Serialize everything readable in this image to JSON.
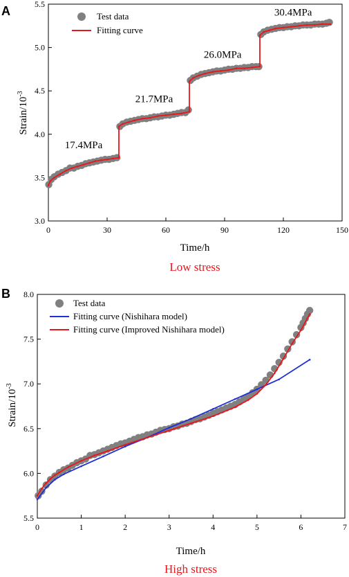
{
  "colors": {
    "test_data": "#808080",
    "fit_red": "#e8161b",
    "fit_blue": "#1f2fd6",
    "caption": "#e8161b"
  },
  "chart_data": [
    {
      "panel": "A",
      "type": "scatter",
      "caption": "Low stress",
      "xlabel": "Time/h",
      "ylabel_base": "Strain/10",
      "ylabel_exp": "-3",
      "xlim": [
        0,
        150
      ],
      "ylim": [
        3.0,
        5.5
      ],
      "xticks": [
        0,
        30,
        60,
        90,
        120,
        150
      ],
      "yticks": [
        3.0,
        3.5,
        4.0,
        4.5,
        5.0,
        5.5
      ],
      "grid": false,
      "legend": {
        "placement": "top-left",
        "entries": [
          "Test data",
          "Fitting curve"
        ]
      },
      "annotations": [
        {
          "text": "17.4MPa",
          "x": 18,
          "y": 3.84
        },
        {
          "text": "21.7MPa",
          "x": 54,
          "y": 4.37
        },
        {
          "text": "26.0MPa",
          "x": 89,
          "y": 4.88
        },
        {
          "text": "30.4MPa",
          "x": 125,
          "y": 5.37
        }
      ],
      "stages": [
        {
          "stress": "17.4MPa",
          "t0": 0,
          "t1": 36,
          "start": 3.4,
          "end": 3.74
        },
        {
          "stress": "21.7MPa",
          "t0": 36,
          "t1": 72,
          "start": 4.08,
          "end": 4.27
        },
        {
          "stress": "26.0MPa",
          "t0": 72,
          "t1": 108,
          "start": 4.61,
          "end": 4.78
        },
        {
          "stress": "30.4MPa",
          "t0": 108,
          "t1": 144,
          "start": 5.14,
          "end": 5.27
        }
      ],
      "series": [
        {
          "name": "Test data",
          "style": "marker",
          "points": [
            [
              0.2,
              3.42
            ],
            [
              1.5,
              3.48
            ],
            [
              3,
              3.51
            ],
            [
              5,
              3.54
            ],
            [
              7,
              3.56
            ],
            [
              9,
              3.58
            ],
            [
              11,
              3.61
            ],
            [
              13,
              3.61
            ],
            [
              15,
              3.63
            ],
            [
              17,
              3.64
            ],
            [
              19,
              3.66
            ],
            [
              21,
              3.67
            ],
            [
              23,
              3.68
            ],
            [
              25,
              3.69
            ],
            [
              27,
              3.7
            ],
            [
              29,
              3.71
            ],
            [
              31,
              3.71
            ],
            [
              33,
              3.72
            ],
            [
              35,
              3.73
            ],
            [
              36.5,
              4.09
            ],
            [
              38,
              4.12
            ],
            [
              40,
              4.14
            ],
            [
              42,
              4.15
            ],
            [
              44,
              4.16
            ],
            [
              46,
              4.17
            ],
            [
              48,
              4.18
            ],
            [
              50,
              4.18
            ],
            [
              52,
              4.19
            ],
            [
              54,
              4.2
            ],
            [
              56,
              4.2
            ],
            [
              58,
              4.21
            ],
            [
              60,
              4.22
            ],
            [
              62,
              4.22
            ],
            [
              64,
              4.23
            ],
            [
              66,
              4.24
            ],
            [
              68,
              4.25
            ],
            [
              70,
              4.25
            ],
            [
              71.5,
              4.28
            ],
            [
              72.5,
              4.62
            ],
            [
              74,
              4.65
            ],
            [
              76,
              4.67
            ],
            [
              78,
              4.69
            ],
            [
              80,
              4.7
            ],
            [
              82,
              4.71
            ],
            [
              84,
              4.72
            ],
            [
              86,
              4.73
            ],
            [
              88,
              4.73
            ],
            [
              90,
              4.74
            ],
            [
              92,
              4.75
            ],
            [
              94,
              4.75
            ],
            [
              96,
              4.76
            ],
            [
              98,
              4.76
            ],
            [
              100,
              4.77
            ],
            [
              102,
              4.77
            ],
            [
              104,
              4.78
            ],
            [
              106,
              4.78
            ],
            [
              107.5,
              4.78
            ],
            [
              108.5,
              5.15
            ],
            [
              110,
              5.18
            ],
            [
              112,
              5.2
            ],
            [
              114,
              5.21
            ],
            [
              116,
              5.22
            ],
            [
              118,
              5.23
            ],
            [
              120,
              5.23
            ],
            [
              122,
              5.24
            ],
            [
              124,
              5.24
            ],
            [
              126,
              5.25
            ],
            [
              128,
              5.25
            ],
            [
              130,
              5.26
            ],
            [
              132,
              5.26
            ],
            [
              134,
              5.26
            ],
            [
              136,
              5.27
            ],
            [
              138,
              5.27
            ],
            [
              140,
              5.27
            ],
            [
              142,
              5.28
            ],
            [
              143.5,
              5.29
            ]
          ]
        },
        {
          "name": "Fitting curve",
          "style": "line",
          "points": [
            [
              0,
              3.41
            ],
            [
              1,
              3.46
            ],
            [
              3,
              3.5
            ],
            [
              6,
              3.54
            ],
            [
              9,
              3.58
            ],
            [
              12,
              3.61
            ],
            [
              15,
              3.63
            ],
            [
              18,
              3.65
            ],
            [
              21,
              3.67
            ],
            [
              24,
              3.69
            ],
            [
              27,
              3.7
            ],
            [
              30,
              3.71
            ],
            [
              33,
              3.72
            ],
            [
              36,
              3.73
            ],
            [
              36,
              4.09
            ],
            [
              38,
              4.12
            ],
            [
              41,
              4.14
            ],
            [
              44,
              4.16
            ],
            [
              48,
              4.18
            ],
            [
              52,
              4.19
            ],
            [
              56,
              4.21
            ],
            [
              60,
              4.22
            ],
            [
              64,
              4.23
            ],
            [
              68,
              4.24
            ],
            [
              72,
              4.26
            ],
            [
              72,
              4.61
            ],
            [
              74,
              4.65
            ],
            [
              77,
              4.68
            ],
            [
              80,
              4.7
            ],
            [
              84,
              4.72
            ],
            [
              88,
              4.73
            ],
            [
              92,
              4.74
            ],
            [
              96,
              4.76
            ],
            [
              100,
              4.76
            ],
            [
              104,
              4.77
            ],
            [
              108,
              4.78
            ],
            [
              108,
              5.14
            ],
            [
              110,
              5.18
            ],
            [
              113,
              5.2
            ],
            [
              116,
              5.22
            ],
            [
              120,
              5.23
            ],
            [
              124,
              5.24
            ],
            [
              128,
              5.25
            ],
            [
              132,
              5.26
            ],
            [
              136,
              5.26
            ],
            [
              140,
              5.27
            ],
            [
              144,
              5.27
            ]
          ]
        }
      ]
    },
    {
      "panel": "B",
      "type": "scatter",
      "caption": "High stress",
      "xlabel": "Time/h",
      "ylabel_base": "Strain/10",
      "ylabel_exp": "-3",
      "xlim": [
        0,
        7
      ],
      "ylim": [
        5.5,
        8.0
      ],
      "xticks": [
        0,
        1,
        2,
        3,
        4,
        5,
        6,
        7
      ],
      "yticks": [
        5.5,
        6.0,
        6.5,
        7.0,
        7.5,
        8.0
      ],
      "grid": false,
      "legend": {
        "placement": "top-left",
        "entries": [
          "Test data",
          "Fitting curve (Nishihara model)",
          "Fitting curve (Improved Nishihara model)"
        ]
      },
      "series": [
        {
          "name": "Test data",
          "style": "marker",
          "points": [
            [
              0.02,
              5.75
            ],
            [
              0.1,
              5.8
            ],
            [
              0.2,
              5.87
            ],
            [
              0.3,
              5.93
            ],
            [
              0.4,
              5.97
            ],
            [
              0.5,
              6.01
            ],
            [
              0.6,
              6.04
            ],
            [
              0.7,
              6.06
            ],
            [
              0.8,
              6.09
            ],
            [
              0.9,
              6.12
            ],
            [
              1.0,
              6.14
            ],
            [
              1.1,
              6.16
            ],
            [
              1.2,
              6.2
            ],
            [
              1.3,
              6.21
            ],
            [
              1.4,
              6.23
            ],
            [
              1.5,
              6.25
            ],
            [
              1.6,
              6.27
            ],
            [
              1.7,
              6.29
            ],
            [
              1.8,
              6.31
            ],
            [
              1.9,
              6.33
            ],
            [
              2.0,
              6.34
            ],
            [
              2.1,
              6.36
            ],
            [
              2.2,
              6.38
            ],
            [
              2.3,
              6.4
            ],
            [
              2.4,
              6.41
            ],
            [
              2.5,
              6.43
            ],
            [
              2.6,
              6.44
            ],
            [
              2.7,
              6.46
            ],
            [
              2.8,
              6.48
            ],
            [
              2.9,
              6.49
            ],
            [
              3.0,
              6.5
            ],
            [
              3.1,
              6.52
            ],
            [
              3.2,
              6.53
            ],
            [
              3.3,
              6.55
            ],
            [
              3.4,
              6.56
            ],
            [
              3.5,
              6.58
            ],
            [
              3.6,
              6.6
            ],
            [
              3.7,
              6.61
            ],
            [
              3.8,
              6.63
            ],
            [
              3.9,
              6.65
            ],
            [
              4.0,
              6.67
            ],
            [
              4.1,
              6.69
            ],
            [
              4.2,
              6.71
            ],
            [
              4.3,
              6.73
            ],
            [
              4.4,
              6.75
            ],
            [
              4.5,
              6.77
            ],
            [
              4.6,
              6.8
            ],
            [
              4.7,
              6.83
            ],
            [
              4.8,
              6.86
            ],
            [
              4.9,
              6.9
            ],
            [
              5.0,
              6.94
            ],
            [
              5.1,
              6.99
            ],
            [
              5.2,
              7.04
            ],
            [
              5.3,
              7.1
            ],
            [
              5.4,
              7.17
            ],
            [
              5.5,
              7.24
            ],
            [
              5.6,
              7.31
            ],
            [
              5.7,
              7.39
            ],
            [
              5.8,
              7.47
            ],
            [
              5.9,
              7.55
            ],
            [
              6.0,
              7.63
            ],
            [
              6.05,
              7.68
            ],
            [
              6.1,
              7.73
            ],
            [
              6.15,
              7.78
            ],
            [
              6.2,
              7.82
            ]
          ]
        },
        {
          "name": "Fitting curve (Nishihara model)",
          "style": "line",
          "points": [
            [
              0,
              5.71
            ],
            [
              0.2,
              5.84
            ],
            [
              0.4,
              5.93
            ],
            [
              0.6,
              5.99
            ],
            [
              1.0,
              6.08
            ],
            [
              1.5,
              6.19
            ],
            [
              2.0,
              6.3
            ],
            [
              2.5,
              6.4
            ],
            [
              3.0,
              6.51
            ],
            [
              3.5,
              6.61
            ],
            [
              4.0,
              6.72
            ],
            [
              4.5,
              6.83
            ],
            [
              5.0,
              6.94
            ],
            [
              5.5,
              7.05
            ],
            [
              6.2,
              7.27
            ]
          ]
        },
        {
          "name": "Fitting curve (Improved Nishihara model)",
          "style": "line",
          "points": [
            [
              0,
              5.75
            ],
            [
              0.1,
              5.83
            ],
            [
              0.2,
              5.89
            ],
            [
              0.3,
              5.94
            ],
            [
              0.4,
              5.98
            ],
            [
              0.5,
              6.01
            ],
            [
              0.7,
              6.07
            ],
            [
              1.0,
              6.14
            ],
            [
              1.3,
              6.2
            ],
            [
              1.6,
              6.25
            ],
            [
              2.0,
              6.32
            ],
            [
              2.5,
              6.4
            ],
            [
              3.0,
              6.48
            ],
            [
              3.5,
              6.56
            ],
            [
              4.0,
              6.64
            ],
            [
              4.5,
              6.74
            ],
            [
              4.8,
              6.82
            ],
            [
              5.0,
              6.89
            ],
            [
              5.2,
              6.99
            ],
            [
              5.4,
              7.12
            ],
            [
              5.6,
              7.28
            ],
            [
              5.8,
              7.45
            ],
            [
              6.0,
              7.6
            ],
            [
              6.2,
              7.78
            ]
          ]
        }
      ]
    }
  ]
}
